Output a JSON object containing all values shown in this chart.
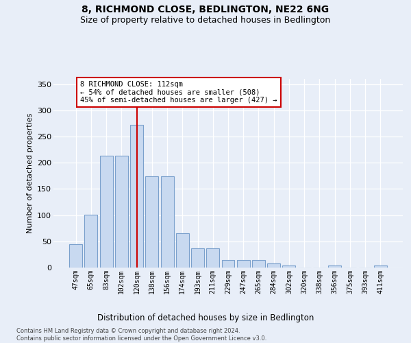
{
  "title": "8, RICHMOND CLOSE, BEDLINGTON, NE22 6NG",
  "subtitle": "Size of property relative to detached houses in Bedlington",
  "xlabel": "Distribution of detached houses by size in Bedlington",
  "ylabel": "Number of detached properties",
  "categories": [
    "47sqm",
    "65sqm",
    "83sqm",
    "102sqm",
    "120sqm",
    "138sqm",
    "156sqm",
    "174sqm",
    "193sqm",
    "211sqm",
    "229sqm",
    "247sqm",
    "265sqm",
    "284sqm",
    "302sqm",
    "320sqm",
    "338sqm",
    "356sqm",
    "375sqm",
    "393sqm",
    "411sqm"
  ],
  "values": [
    45,
    101,
    214,
    214,
    272,
    174,
    174,
    65,
    37,
    37,
    15,
    15,
    15,
    8,
    4,
    0,
    0,
    4,
    0,
    0,
    4
  ],
  "bar_color": "#c8d9f0",
  "bar_edge_color": "#7aa0cc",
  "vline_color": "#cc0000",
  "vline_index": 4,
  "annotation_line1": "8 RICHMOND CLOSE: 112sqm",
  "annotation_line2": "← 54% of detached houses are smaller (508)",
  "annotation_line3": "45% of semi-detached houses are larger (427) →",
  "ylim": [
    0,
    360
  ],
  "yticks": [
    0,
    50,
    100,
    150,
    200,
    250,
    300,
    350
  ],
  "bg_color": "#e8eef8",
  "grid_color": "#ffffff",
  "footer": "Contains HM Land Registry data © Crown copyright and database right 2024.\nContains public sector information licensed under the Open Government Licence v3.0."
}
